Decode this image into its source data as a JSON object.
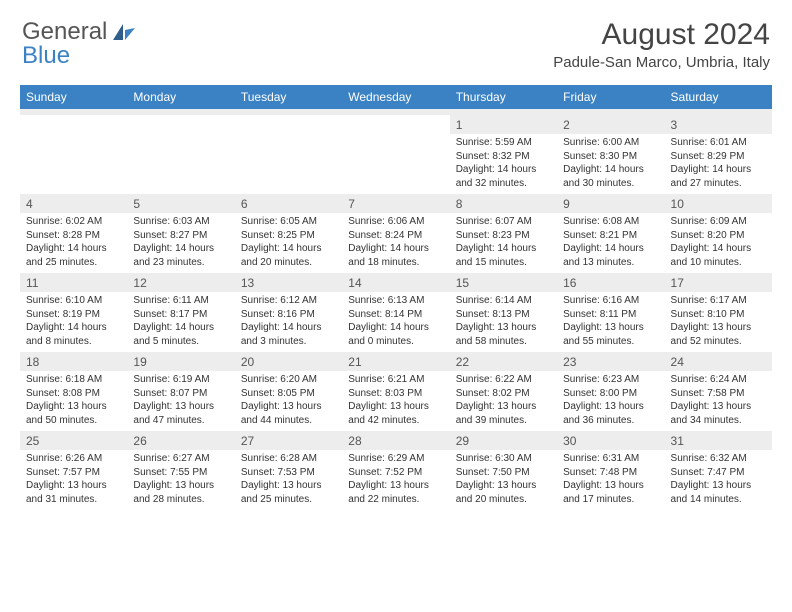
{
  "branding": {
    "logo_text_1": "General",
    "logo_text_2": "Blue",
    "logo_gray": "#6b6b6b",
    "logo_blue": "#3b82c4"
  },
  "header": {
    "month_title": "August 2024",
    "location": "Padule-San Marco, Umbria, Italy"
  },
  "style": {
    "header_bg": "#3b82c4",
    "header_text": "#ffffff",
    "daynum_bg": "#ededed",
    "border_color": "#3b82c4",
    "body_text": "#333333",
    "title_fontsize": 30,
    "location_fontsize": 15,
    "dayheader_fontsize": 12,
    "daynum_fontsize": 12,
    "detail_fontsize": 10
  },
  "day_names": [
    "Sunday",
    "Monday",
    "Tuesday",
    "Wednesday",
    "Thursday",
    "Friday",
    "Saturday"
  ],
  "weeks": [
    [
      null,
      null,
      null,
      null,
      {
        "n": "1",
        "sr": "5:59 AM",
        "ss": "8:32 PM",
        "dl": "14 hours and 32 minutes."
      },
      {
        "n": "2",
        "sr": "6:00 AM",
        "ss": "8:30 PM",
        "dl": "14 hours and 30 minutes."
      },
      {
        "n": "3",
        "sr": "6:01 AM",
        "ss": "8:29 PM",
        "dl": "14 hours and 27 minutes."
      }
    ],
    [
      {
        "n": "4",
        "sr": "6:02 AM",
        "ss": "8:28 PM",
        "dl": "14 hours and 25 minutes."
      },
      {
        "n": "5",
        "sr": "6:03 AM",
        "ss": "8:27 PM",
        "dl": "14 hours and 23 minutes."
      },
      {
        "n": "6",
        "sr": "6:05 AM",
        "ss": "8:25 PM",
        "dl": "14 hours and 20 minutes."
      },
      {
        "n": "7",
        "sr": "6:06 AM",
        "ss": "8:24 PM",
        "dl": "14 hours and 18 minutes."
      },
      {
        "n": "8",
        "sr": "6:07 AM",
        "ss": "8:23 PM",
        "dl": "14 hours and 15 minutes."
      },
      {
        "n": "9",
        "sr": "6:08 AM",
        "ss": "8:21 PM",
        "dl": "14 hours and 13 minutes."
      },
      {
        "n": "10",
        "sr": "6:09 AM",
        "ss": "8:20 PM",
        "dl": "14 hours and 10 minutes."
      }
    ],
    [
      {
        "n": "11",
        "sr": "6:10 AM",
        "ss": "8:19 PM",
        "dl": "14 hours and 8 minutes."
      },
      {
        "n": "12",
        "sr": "6:11 AM",
        "ss": "8:17 PM",
        "dl": "14 hours and 5 minutes."
      },
      {
        "n": "13",
        "sr": "6:12 AM",
        "ss": "8:16 PM",
        "dl": "14 hours and 3 minutes."
      },
      {
        "n": "14",
        "sr": "6:13 AM",
        "ss": "8:14 PM",
        "dl": "14 hours and 0 minutes."
      },
      {
        "n": "15",
        "sr": "6:14 AM",
        "ss": "8:13 PM",
        "dl": "13 hours and 58 minutes."
      },
      {
        "n": "16",
        "sr": "6:16 AM",
        "ss": "8:11 PM",
        "dl": "13 hours and 55 minutes."
      },
      {
        "n": "17",
        "sr": "6:17 AM",
        "ss": "8:10 PM",
        "dl": "13 hours and 52 minutes."
      }
    ],
    [
      {
        "n": "18",
        "sr": "6:18 AM",
        "ss": "8:08 PM",
        "dl": "13 hours and 50 minutes."
      },
      {
        "n": "19",
        "sr": "6:19 AM",
        "ss": "8:07 PM",
        "dl": "13 hours and 47 minutes."
      },
      {
        "n": "20",
        "sr": "6:20 AM",
        "ss": "8:05 PM",
        "dl": "13 hours and 44 minutes."
      },
      {
        "n": "21",
        "sr": "6:21 AM",
        "ss": "8:03 PM",
        "dl": "13 hours and 42 minutes."
      },
      {
        "n": "22",
        "sr": "6:22 AM",
        "ss": "8:02 PM",
        "dl": "13 hours and 39 minutes."
      },
      {
        "n": "23",
        "sr": "6:23 AM",
        "ss": "8:00 PM",
        "dl": "13 hours and 36 minutes."
      },
      {
        "n": "24",
        "sr": "6:24 AM",
        "ss": "7:58 PM",
        "dl": "13 hours and 34 minutes."
      }
    ],
    [
      {
        "n": "25",
        "sr": "6:26 AM",
        "ss": "7:57 PM",
        "dl": "13 hours and 31 minutes."
      },
      {
        "n": "26",
        "sr": "6:27 AM",
        "ss": "7:55 PM",
        "dl": "13 hours and 28 minutes."
      },
      {
        "n": "27",
        "sr": "6:28 AM",
        "ss": "7:53 PM",
        "dl": "13 hours and 25 minutes."
      },
      {
        "n": "28",
        "sr": "6:29 AM",
        "ss": "7:52 PM",
        "dl": "13 hours and 22 minutes."
      },
      {
        "n": "29",
        "sr": "6:30 AM",
        "ss": "7:50 PM",
        "dl": "13 hours and 20 minutes."
      },
      {
        "n": "30",
        "sr": "6:31 AM",
        "ss": "7:48 PM",
        "dl": "13 hours and 17 minutes."
      },
      {
        "n": "31",
        "sr": "6:32 AM",
        "ss": "7:47 PM",
        "dl": "13 hours and 14 minutes."
      }
    ]
  ],
  "labels": {
    "sunrise": "Sunrise:",
    "sunset": "Sunset:",
    "daylight": "Daylight:"
  }
}
